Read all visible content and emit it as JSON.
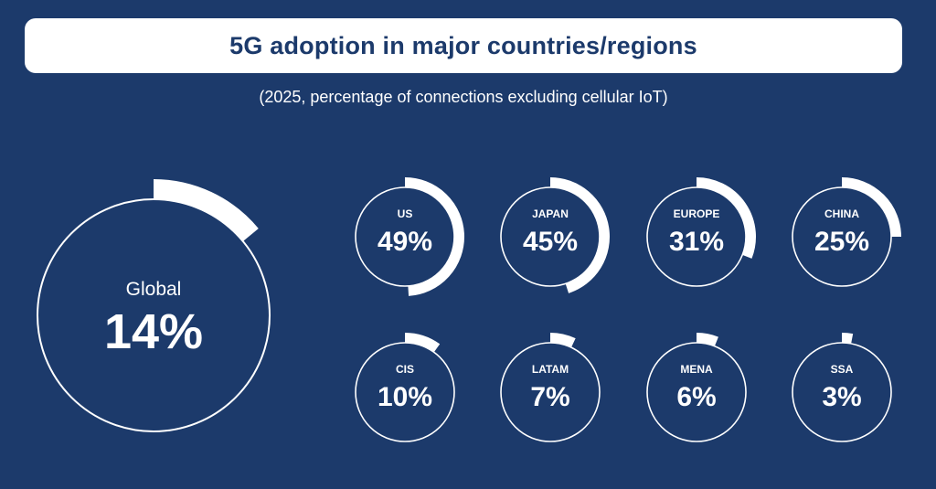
{
  "header": {
    "title": "5G adoption in major countries/regions",
    "subtitle": "(2025, percentage of connections excluding cellular IoT)"
  },
  "colors": {
    "background": "#1c3a6b",
    "ring": "#ffffff",
    "title_text": "#1c3a6b"
  },
  "chart_data": {
    "type": "pie",
    "unit": "%",
    "title": "5G adoption in major countries/regions",
    "subtitle": "(2025, percentage of connections excluding cellular IoT)",
    "items": [
      {
        "name": "Global",
        "value": 14,
        "label": "14%"
      },
      {
        "name": "US",
        "value": 49,
        "label": "49%"
      },
      {
        "name": "JAPAN",
        "value": 45,
        "label": "45%"
      },
      {
        "name": "EUROPE",
        "value": 31,
        "label": "31%"
      },
      {
        "name": "CHINA",
        "value": 25,
        "label": "25%"
      },
      {
        "name": "CIS",
        "value": 10,
        "label": "10%"
      },
      {
        "name": "LATAM",
        "value": 7,
        "label": "7%"
      },
      {
        "name": "MENA",
        "value": 6,
        "label": "6%"
      },
      {
        "name": "SSA",
        "value": 3,
        "label": "3%"
      }
    ]
  }
}
